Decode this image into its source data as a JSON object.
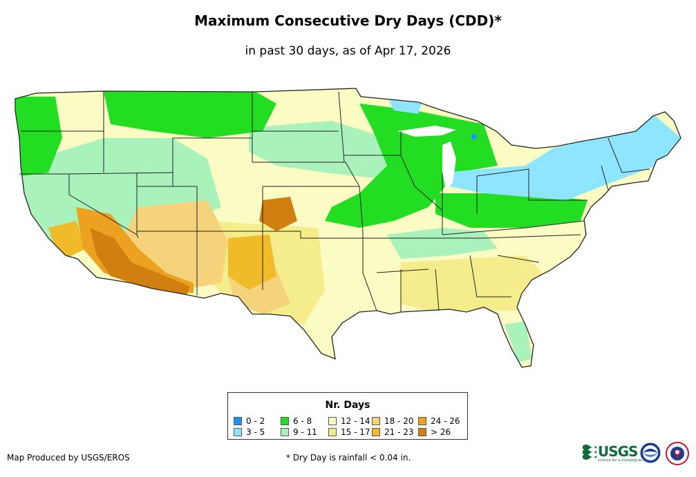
{
  "title": "Maximum Consecutive Dry Days (CDD)*",
  "subtitle": "in past 30 days, as of Apr 17, 2026",
  "legend": {
    "title": "Nr. Days",
    "items": [
      {
        "label": "0 - 2",
        "color": "#1e90ff"
      },
      {
        "label": "3 - 5",
        "color": "#8ee5ff"
      },
      {
        "label": "6 - 8",
        "color": "#22dd22"
      },
      {
        "label": "9 - 11",
        "color": "#aaf2bb"
      },
      {
        "label": "12 - 14",
        "color": "#fbfbc4"
      },
      {
        "label": "15 - 17",
        "color": "#f5ec8c"
      },
      {
        "label": "18 - 20",
        "color": "#f5d37a"
      },
      {
        "label": "21 - 23",
        "color": "#f0ba28"
      },
      {
        "label": "24 - 26",
        "color": "#eca220"
      },
      {
        "label": "> 26",
        "color": "#cf8010"
      }
    ]
  },
  "footer": {
    "producer": "Map Produced by USGS/EROS",
    "note": "* Dry Day is rainfall < 0.04 in."
  },
  "logos": {
    "usgs": "USGS",
    "usgs_tagline": "science for a changing world",
    "noaa": "NOAA",
    "nws": "NATIONAL WEATHER SERVICE"
  },
  "icons": [
    "usgs-logo",
    "noaa-logo",
    "nws-logo"
  ]
}
